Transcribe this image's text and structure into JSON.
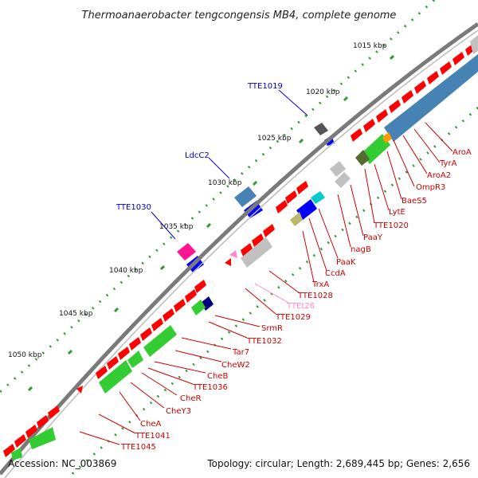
{
  "title": "Thermoanaerobacter tengcongensis MB4, complete genome",
  "footer": {
    "accession": "Accession: NC_003869",
    "topology": "Topology: circular; Length: 2,689,445 bp; Genes: 2,656"
  },
  "scale_labels": [
    "1015 kbp",
    "1020 kbp",
    "1025 kbp",
    "1030 kbp",
    "1035 kbp",
    "1040 kbp",
    "1045 kbp",
    "1050 kbp"
  ],
  "outer_gene_labels": [
    "TTE1019",
    "LdcC2",
    "TTE1030"
  ],
  "inner_gene_labels": [
    "AroA",
    "TyrA",
    "AroA2",
    "OmpR3",
    "BaeS5",
    "LytE",
    "TTE1020",
    "PaaY",
    "nagB",
    "PaaK",
    "CcdA",
    "TrxA",
    "TTE1028",
    "TTEt26",
    "TTE1029",
    "SrmR",
    "TTE1032",
    "Tar7",
    "CheW2",
    "CheB",
    "TTE1036",
    "CheR",
    "CheY3",
    "CheA",
    "TTE1041",
    "TTE1045"
  ],
  "colors": {
    "backbone": "#808080",
    "red_genes": "#ff0000",
    "green_genes": "#33cc33",
    "blue_genes": "#0000ff",
    "steelblue_genes": "#4682b4",
    "grey_genes": "#c0c0c0",
    "magenta_gene": "#ff1493",
    "outer_label": "#0000cc",
    "inner_label": "#cc0000",
    "trna_label": "#ff88cc",
    "scale_dots": "#339933"
  }
}
